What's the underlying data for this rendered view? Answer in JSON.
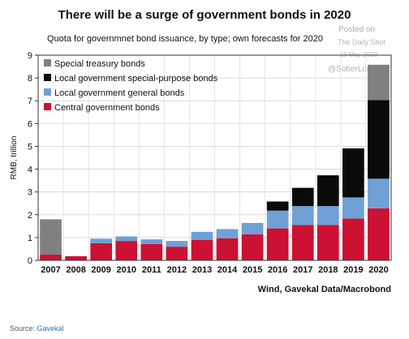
{
  "page": {
    "title": "There will be a surge of government bonds in 2020",
    "subtitle": "Quota for governmnet bond issuance, by type; own forecasts for 2020",
    "watermark": {
      "posted_on": "Posted on",
      "site": "The Daily Shot",
      "date": "13-May-2020",
      "handle": "@SoberLook"
    },
    "source_note": "Wind, Gavekal Data/Macrobond",
    "caption": {
      "prefix": "Source: ",
      "link": "Gavekal"
    }
  },
  "chart_data": {
    "type": "bar",
    "stacked": true,
    "ylabel": "RMB, trillion",
    "ylim": [
      0,
      9
    ],
    "yticks": [
      0,
      1,
      2,
      3,
      4,
      5,
      6,
      7,
      8,
      9
    ],
    "grid": true,
    "legend_position": "top-left",
    "categories": [
      "2007",
      "2008",
      "2009",
      "2010",
      "2011",
      "2012",
      "2013",
      "2014",
      "2015",
      "2016",
      "2017",
      "2018",
      "2019",
      "2020"
    ],
    "series": [
      {
        "name": "Central government bonds",
        "color": "#cc1133",
        "values": [
          0.25,
          0.18,
          0.75,
          0.85,
          0.72,
          0.6,
          0.9,
          0.97,
          1.14,
          1.4,
          1.55,
          1.55,
          1.83,
          2.28
        ]
      },
      {
        "name": "Local government general bonds",
        "color": "#6fa0d6",
        "values": [
          0,
          0,
          0.2,
          0.2,
          0.2,
          0.25,
          0.35,
          0.4,
          0.5,
          0.78,
          0.83,
          0.83,
          0.93,
          1.3
        ]
      },
      {
        "name": "Local government special-purpose bonds",
        "color": "#0a0a0a",
        "values": [
          0,
          0,
          0,
          0,
          0,
          0,
          0,
          0,
          0,
          0.4,
          0.8,
          1.35,
          2.15,
          3.45
        ]
      },
      {
        "name": "Special treasury bonds",
        "color": "#808080",
        "values": [
          1.55,
          0,
          0,
          0,
          0,
          0,
          0,
          0,
          0,
          0,
          0,
          0,
          0,
          1.55
        ]
      }
    ]
  }
}
